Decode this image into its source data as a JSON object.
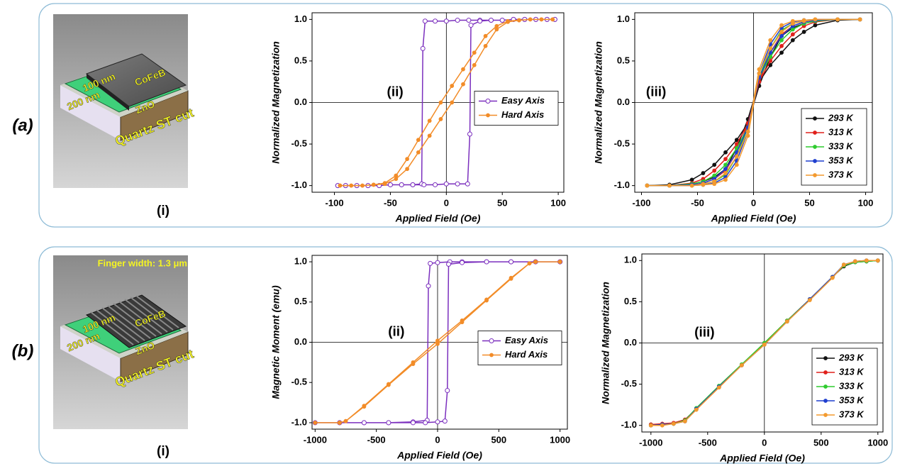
{
  "panels": [
    {
      "label": "(a)",
      "illustration": {
        "labels": [
          "100 nm",
          "CoFeB",
          "200 nm",
          "ZnO",
          "Quartz ST cut"
        ],
        "caption": "(i)"
      }
    },
    {
      "label": "(b)",
      "illustration": {
        "labels": [
          "Finger width: 1.3 μm",
          "100 nm",
          "CoFeB",
          "200 nm",
          "ZnO",
          "Quartz ST cut"
        ],
        "caption": "(i)"
      }
    }
  ],
  "chart_data": [
    {
      "type": "line",
      "panel_label": "(ii)",
      "xlabel": "Applied Field (Oe)",
      "ylabel": "Normalized Magnetization",
      "xlim": [
        -120,
        105
      ],
      "xticks": [
        -100,
        -50,
        0,
        50,
        100
      ],
      "ylim": [
        -1.08,
        1.08
      ],
      "yticks": [
        {
          "value": -1,
          "label": "-1.0"
        },
        -0.5,
        {
          "value": 0,
          "label": "0.0"
        },
        0.5,
        {
          "value": 1,
          "label": "1.0"
        }
      ],
      "reference_lines": {
        "x": 0,
        "y": 0
      },
      "legend": "center right",
      "series": [
        {
          "name": "Easy Axis",
          "color": "#7b2fbe",
          "marker": "open-circle",
          "x": [
            97,
            90,
            80,
            70,
            60,
            50,
            40,
            30,
            20,
            10,
            0,
            -10,
            -19,
            -21,
            -22,
            -30,
            -40,
            -50,
            -60,
            -70,
            -80,
            -90,
            -97,
            -97,
            -90,
            -80,
            -70,
            -60,
            -50,
            -40,
            -30,
            -20,
            -10,
            0,
            10,
            19,
            21,
            22,
            30,
            40,
            50,
            60,
            70,
            80,
            90,
            97
          ],
          "values": [
            1,
            1,
            1,
            1,
            1,
            0.99,
            0.99,
            0.99,
            0.99,
            0.99,
            0.98,
            0.98,
            0.98,
            0.65,
            -0.98,
            -0.99,
            -0.99,
            -0.99,
            -1,
            -1,
            -1,
            -1,
            -1,
            -1,
            -1,
            -1,
            -1,
            -1,
            -0.99,
            -0.99,
            -0.99,
            -0.99,
            -0.99,
            -0.98,
            -0.98,
            -0.98,
            -0.38,
            0.93,
            0.98,
            0.99,
            0.99,
            1,
            1,
            1,
            1,
            1
          ]
        },
        {
          "name": "Hard Axis",
          "color": "#f28c28",
          "marker": "circle",
          "x": [
            95,
            85,
            75,
            65,
            55,
            45,
            35,
            25,
            15,
            5,
            -5,
            -15,
            -25,
            -35,
            -45,
            -55,
            -65,
            -75,
            -85,
            -95,
            -95,
            -85,
            -75,
            -65,
            -55,
            -45,
            -35,
            -25,
            -15,
            -5,
            5,
            15,
            25,
            35,
            45,
            55,
            65,
            75,
            85,
            95
          ],
          "values": [
            1,
            1,
            1,
            0.99,
            0.98,
            0.92,
            0.8,
            0.6,
            0.4,
            0.2,
            0,
            -0.22,
            -0.45,
            -0.68,
            -0.88,
            -0.97,
            -0.99,
            -1,
            -1,
            -1,
            -1,
            -1,
            -1,
            -0.99,
            -0.98,
            -0.92,
            -0.8,
            -0.6,
            -0.4,
            -0.2,
            0,
            0.22,
            0.45,
            0.68,
            0.88,
            0.97,
            0.99,
            1,
            1,
            1
          ]
        }
      ]
    },
    {
      "type": "line",
      "panel_label": "(iii)",
      "xlabel": "Applied Field (Oe)",
      "ylabel": "Normalized Magnetization",
      "xlim": [
        -106,
        106
      ],
      "xticks": [
        -100,
        -50,
        0,
        50,
        100
      ],
      "ylim": [
        -1.08,
        1.08
      ],
      "yticks": [
        {
          "value": -1,
          "label": "-1.0"
        },
        -0.5,
        {
          "value": 0,
          "label": "0.0"
        },
        0.5,
        {
          "value": 1,
          "label": "1.0"
        }
      ],
      "reference_lines": {
        "x": 0,
        "y": 0
      },
      "legend": "lower right",
      "x": [
        95,
        75,
        55,
        45,
        35,
        25,
        15,
        5,
        -5,
        -15,
        -25,
        -35,
        -45,
        -55,
        -75,
        -95,
        -95,
        -75,
        -55,
        -45,
        -35,
        -25,
        -15,
        -5,
        5,
        15,
        25,
        35,
        45,
        55,
        75,
        95
      ],
      "series": [
        {
          "name": "293 K",
          "color": "#111111",
          "marker": "circle",
          "values": [
            1,
            1,
            0.98,
            0.95,
            0.9,
            0.8,
            0.55,
            0.2,
            -0.25,
            -0.45,
            -0.6,
            -0.75,
            -0.85,
            -0.93,
            -0.99,
            -1,
            -1,
            -1,
            -0.98,
            -0.95,
            -0.9,
            -0.8,
            -0.55,
            -0.2,
            0.25,
            0.45,
            0.6,
            0.75,
            0.85,
            0.93,
            0.99,
            1
          ]
        },
        {
          "name": "313 K",
          "color": "#e0201b",
          "marker": "circle",
          "values": [
            1,
            1,
            0.99,
            0.97,
            0.92,
            0.82,
            0.6,
            0.25,
            -0.25,
            -0.5,
            -0.68,
            -0.82,
            -0.92,
            -0.97,
            -1,
            -1,
            -1,
            -1,
            -0.99,
            -0.97,
            -0.92,
            -0.82,
            -0.6,
            -0.25,
            0.25,
            0.5,
            0.68,
            0.82,
            0.92,
            0.97,
            1,
            1
          ]
        },
        {
          "name": "333 K",
          "color": "#2ecc2e",
          "marker": "circle",
          "values": [
            1,
            1,
            0.99,
            0.98,
            0.95,
            0.87,
            0.65,
            0.3,
            -0.3,
            -0.55,
            -0.75,
            -0.88,
            -0.95,
            -0.98,
            -1,
            -1,
            -1,
            -1,
            -0.99,
            -0.98,
            -0.95,
            -0.87,
            -0.65,
            -0.3,
            0.3,
            0.55,
            0.75,
            0.88,
            0.95,
            0.98,
            1,
            1
          ]
        },
        {
          "name": "353 K",
          "color": "#1f3fcf",
          "marker": "circle",
          "values": [
            1,
            1,
            1,
            0.99,
            0.97,
            0.9,
            0.7,
            0.35,
            -0.3,
            -0.6,
            -0.8,
            -0.92,
            -0.97,
            -0.99,
            -1,
            -1,
            -1,
            -1,
            -1,
            -0.99,
            -0.97,
            -0.9,
            -0.7,
            -0.35,
            0.3,
            0.6,
            0.8,
            0.92,
            0.97,
            0.99,
            1,
            1
          ]
        },
        {
          "name": "373 K",
          "color": "#f39a2e",
          "marker": "circle",
          "values": [
            1,
            1,
            1,
            0.99,
            0.98,
            0.93,
            0.75,
            0.4,
            -0.35,
            -0.65,
            -0.85,
            -0.95,
            -0.98,
            -1,
            -1,
            -1,
            -1,
            -1,
            -1,
            -0.99,
            -0.98,
            -0.93,
            -0.75,
            -0.4,
            0.35,
            0.65,
            0.85,
            0.95,
            0.98,
            1,
            1,
            1
          ]
        }
      ]
    },
    {
      "type": "line",
      "panel_label": "(ii)",
      "xlabel": "Applied Field (Oe)",
      "ylabel": "Magnetic Moment (emu)",
      "xlim": [
        -1025,
        1060
      ],
      "xticks": [
        -1000,
        -500,
        0,
        500,
        1000
      ],
      "ylim": [
        -1.08,
        1.08
      ],
      "yticks": [
        {
          "value": -1,
          "label": "-1.0"
        },
        -0.5,
        {
          "value": 0,
          "label": "0.0"
        },
        0.5,
        {
          "value": 1,
          "label": "1.0"
        }
      ],
      "reference_lines": {
        "x": 0,
        "y": 0
      },
      "legend": "center right",
      "series": [
        {
          "name": "Easy Axis",
          "color": "#7b2fbe",
          "marker": "open-circle",
          "x": [
            1000,
            800,
            600,
            400,
            200,
            100,
            0,
            -60,
            -75,
            -85,
            -200,
            -400,
            -600,
            -800,
            -1000,
            -800,
            -600,
            -400,
            -200,
            -100,
            0,
            60,
            80,
            90,
            200,
            400,
            600,
            800,
            1000
          ],
          "values": [
            1,
            1,
            1,
            1,
            1,
            1,
            0.99,
            0.98,
            0.7,
            -0.97,
            -0.99,
            -1,
            -1,
            -1,
            -1,
            -1,
            -1,
            -1,
            -1,
            -1,
            -0.99,
            -0.98,
            -0.6,
            0.97,
            0.99,
            1,
            1,
            1,
            1
          ]
        },
        {
          "name": "Hard Axis",
          "color": "#f28c28",
          "marker": "circle",
          "x": [
            1000,
            800,
            750,
            600,
            400,
            200,
            0,
            -200,
            -400,
            -600,
            -750,
            -800,
            -1000,
            -800,
            -750,
            -600,
            -400,
            -200,
            0,
            200,
            400,
            600,
            750,
            800,
            1000
          ],
          "values": [
            1,
            1,
            0.98,
            0.8,
            0.53,
            0.27,
            0.02,
            -0.25,
            -0.52,
            -0.79,
            -0.98,
            -1,
            -1,
            -1,
            -0.98,
            -0.8,
            -0.53,
            -0.27,
            -0.02,
            0.25,
            0.52,
            0.79,
            0.98,
            1,
            1
          ]
        }
      ]
    },
    {
      "type": "line",
      "panel_label": "(iii)",
      "xlabel": "Applied Field (Oe)",
      "ylabel": "Normalized Magnetization",
      "xlim": [
        -1080,
        1045
      ],
      "xticks": [
        -1000,
        -500,
        0,
        500,
        1000
      ],
      "ylim": [
        -1.08,
        1.08
      ],
      "yticks": [
        {
          "value": -1,
          "label": "-1.0"
        },
        -0.5,
        {
          "value": 0,
          "label": "0.0"
        },
        0.5,
        {
          "value": 1,
          "label": "1.0"
        }
      ],
      "reference_lines": {
        "x": 0,
        "y": 0
      },
      "legend": "lower right",
      "x": [
        -1000,
        -900,
        -800,
        -700,
        -600,
        -400,
        -200,
        0,
        200,
        400,
        600,
        700,
        800,
        900,
        1000
      ],
      "series": [
        {
          "name": "293 K",
          "color": "#111111",
          "marker": "circle",
          "values": [
            -0.99,
            -0.99,
            -0.98,
            -0.94,
            -0.8,
            -0.53,
            -0.27,
            -0.01,
            0.27,
            0.53,
            0.8,
            0.93,
            0.98,
            0.99,
            1
          ]
        },
        {
          "name": "313 K",
          "color": "#e0201b",
          "marker": "circle",
          "values": [
            -0.99,
            -0.98,
            -0.97,
            -0.93,
            -0.8,
            -0.53,
            -0.27,
            0,
            0.27,
            0.53,
            0.8,
            0.94,
            0.99,
            1,
            1
          ]
        },
        {
          "name": "333 K",
          "color": "#2ecc2e",
          "marker": "circle",
          "values": [
            -1,
            -0.99,
            -0.98,
            -0.94,
            -0.79,
            -0.52,
            -0.26,
            0,
            0.27,
            0.53,
            0.8,
            0.94,
            0.98,
            0.99,
            1
          ]
        },
        {
          "name": "353 K",
          "color": "#1f3fcf",
          "marker": "circle",
          "values": [
            -1,
            -0.99,
            -0.98,
            -0.95,
            -0.8,
            -0.53,
            -0.27,
            -0.02,
            0.26,
            0.53,
            0.8,
            0.95,
            0.99,
            1,
            1
          ]
        },
        {
          "name": "373 K",
          "color": "#f39a2e",
          "marker": "circle",
          "values": [
            -1,
            -1,
            -0.98,
            -0.95,
            -0.81,
            -0.54,
            -0.27,
            -0.02,
            0.26,
            0.52,
            0.79,
            0.95,
            0.99,
            1,
            1
          ]
        }
      ]
    }
  ]
}
